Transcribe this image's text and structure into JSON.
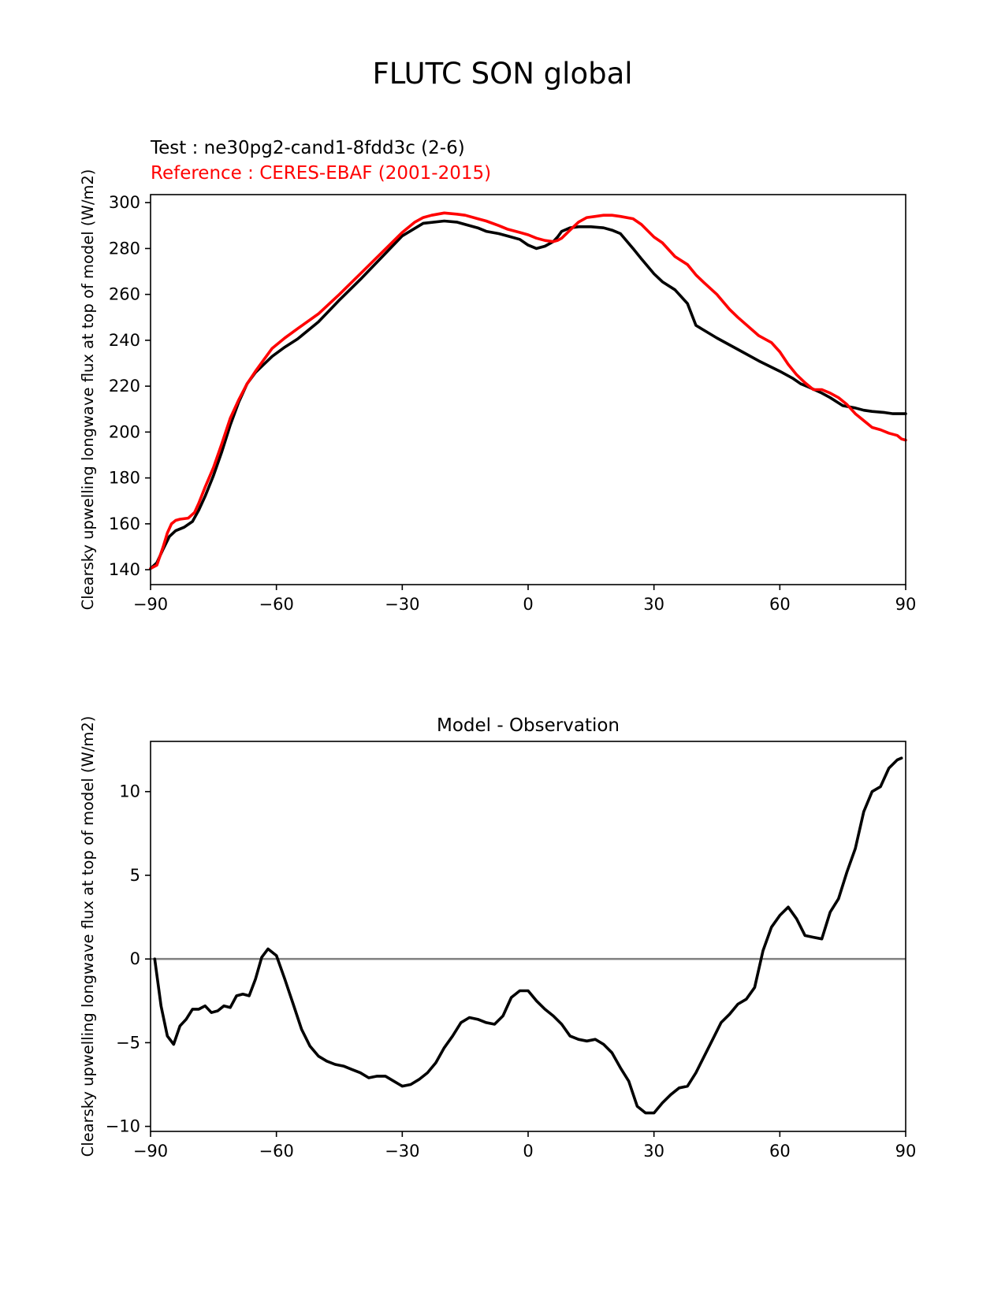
{
  "figure": {
    "title": "FLUTC SON global",
    "test_label": "Test : ne30pg2-cand1-8fdd3c (2-6)",
    "reference_label": "Reference : CERES-EBAF (2001-2015)"
  },
  "colors": {
    "test": "#000000",
    "reference": "#ff0000",
    "zero_line": "#808080"
  },
  "chart_data": [
    {
      "type": "line",
      "title": "",
      "xlabel": "",
      "ylabel": "Clearsky upwelling longwave flux at top of model (W/m2)",
      "xlim": [
        -90,
        90
      ],
      "ylim": [
        133.5,
        303.5
      ],
      "xticks": [
        -90,
        -60,
        -30,
        0,
        30,
        60,
        90
      ],
      "xtick_labels": [
        "−90",
        "−60",
        "−30",
        "0",
        "30",
        "60",
        "90"
      ],
      "yticks": [
        140,
        160,
        180,
        200,
        220,
        240,
        260,
        280,
        300
      ],
      "ytick_labels": [
        "140",
        "160",
        "180",
        "200",
        "220",
        "240",
        "260",
        "280",
        "300"
      ],
      "grid": false,
      "series": [
        {
          "name": "Test : ne30pg2-cand1-8fdd3c (2-6)",
          "color": "#000000",
          "x": [
            -90,
            -88.5,
            -87,
            -85.5,
            -84,
            -82,
            -80,
            -78.5,
            -77,
            -75,
            -73,
            -71,
            -69,
            -67,
            -65,
            -63,
            -61,
            -58,
            -55,
            -50,
            -45,
            -40,
            -35,
            -30,
            -25,
            -20,
            -17,
            -15,
            -12,
            -10,
            -7,
            -5,
            -2,
            0,
            2,
            4,
            6,
            7,
            8,
            10,
            12,
            15,
            18,
            20,
            22,
            25,
            27,
            30,
            32,
            35,
            38,
            40,
            45,
            50,
            55,
            60,
            63,
            65,
            67,
            70,
            72,
            75,
            78,
            80,
            82,
            85,
            87,
            90
          ],
          "y": [
            140.5,
            143,
            149,
            154.5,
            157,
            158.5,
            161,
            166,
            172,
            181,
            191.5,
            203,
            213,
            221,
            226,
            229.5,
            233,
            237,
            240.5,
            248,
            257.5,
            266.5,
            276,
            285.5,
            291,
            292,
            291.5,
            290.5,
            289,
            287.5,
            286.5,
            285.5,
            284,
            281.5,
            280,
            281,
            283,
            285,
            287.5,
            289,
            289.5,
            289.5,
            289,
            288,
            286.5,
            280,
            275.5,
            269,
            265.5,
            262,
            256,
            246.5,
            241,
            236,
            231,
            226.5,
            223.5,
            221,
            219.5,
            217,
            215,
            211.5,
            210.5,
            209.5,
            209,
            208.5,
            208,
            208
          ]
        },
        {
          "name": "Reference : CERES-EBAF (2001-2015)",
          "color": "#ff0000",
          "x": [
            -90,
            -88.5,
            -87,
            -86,
            -85,
            -84,
            -83,
            -81,
            -79.5,
            -78.5,
            -77,
            -75,
            -73,
            -71,
            -69,
            -67,
            -65,
            -63,
            -61,
            -58,
            -55,
            -50,
            -45,
            -40,
            -35,
            -30,
            -27,
            -25,
            -23,
            -20,
            -17,
            -15,
            -12,
            -10,
            -7,
            -5,
            -2,
            0,
            2,
            4,
            6,
            7,
            8,
            10,
            12,
            14,
            16,
            18,
            20,
            22,
            25,
            27,
            30,
            32,
            35,
            38,
            40,
            42,
            45,
            48,
            50,
            55,
            57,
            58,
            60,
            62,
            64,
            66,
            68,
            70,
            72,
            74,
            76,
            78,
            80,
            82,
            84,
            86,
            88,
            89,
            90
          ],
          "y": [
            140.5,
            142,
            150,
            156,
            160,
            161.5,
            162,
            162.5,
            165,
            169,
            176,
            184.5,
            195,
            206,
            214,
            221,
            226.5,
            231.5,
            236.5,
            241,
            245,
            251.5,
            260,
            269,
            278,
            287,
            291.5,
            293.5,
            294.5,
            295.5,
            295,
            294.5,
            293,
            292,
            290,
            288.5,
            287,
            286,
            284.5,
            283.5,
            283,
            283.5,
            284.5,
            288,
            291.5,
            293.5,
            294,
            294.5,
            294.5,
            294,
            293,
            290.5,
            285,
            282.5,
            276.5,
            273,
            268.5,
            265,
            260,
            253.5,
            250,
            242,
            240,
            239,
            235,
            229.5,
            225,
            221.5,
            218.5,
            218.5,
            217,
            215,
            212,
            208,
            205,
            202,
            201,
            199.5,
            198.5,
            197,
            196.5
          ]
        }
      ]
    },
    {
      "type": "line",
      "title": "Model - Observation",
      "xlabel": "",
      "ylabel": "Clearsky upwelling longwave flux at top of model (W/m2)",
      "xlim": [
        -90,
        90
      ],
      "ylim": [
        -10.3,
        13.0
      ],
      "xticks": [
        -90,
        -60,
        -30,
        0,
        30,
        60,
        90
      ],
      "xtick_labels": [
        "−90",
        "−60",
        "−30",
        "0",
        "30",
        "60",
        "90"
      ],
      "yticks": [
        -10,
        -5,
        0,
        5,
        10
      ],
      "ytick_labels": [
        "−10",
        "−5",
        "0",
        "5",
        "10"
      ],
      "grid": false,
      "zero_line": 0,
      "series": [
        {
          "name": "",
          "color": "#000000",
          "x": [
            -89,
            -87.5,
            -86,
            -84.5,
            -83,
            -81.5,
            -80,
            -78.5,
            -77,
            -75.5,
            -74,
            -72.5,
            -71,
            -69.5,
            -68,
            -66.5,
            -65,
            -63.5,
            -62,
            -60,
            -58,
            -56,
            -54,
            -52,
            -50,
            -48,
            -46,
            -44,
            -42,
            -40,
            -38,
            -36,
            -34,
            -32,
            -30,
            -28,
            -26,
            -24,
            -22,
            -20,
            -18,
            -16,
            -14,
            -12,
            -10,
            -8,
            -6,
            -4,
            -2,
            0,
            2,
            4,
            6,
            8,
            10,
            12,
            14,
            16,
            18,
            20,
            22,
            24,
            26,
            28,
            30,
            32,
            34,
            36,
            38,
            40,
            42,
            44,
            46,
            48,
            50,
            52,
            54,
            56,
            58,
            60,
            62,
            64,
            66,
            68,
            70,
            72,
            74,
            76,
            78,
            80,
            82,
            84,
            86,
            88,
            89
          ],
          "y": [
            0,
            -2.8,
            -4.6,
            -5.1,
            -4,
            -3.6,
            -3,
            -3,
            -2.8,
            -3.2,
            -3.1,
            -2.8,
            -2.9,
            -2.2,
            -2.1,
            -2.2,
            -1.2,
            0.1,
            0.6,
            0.2,
            -1.2,
            -2.7,
            -4.2,
            -5.2,
            -5.8,
            -6.1,
            -6.3,
            -6.4,
            -6.6,
            -6.8,
            -7.1,
            -7,
            -7,
            -7.3,
            -7.6,
            -7.5,
            -7.2,
            -6.8,
            -6.2,
            -5.3,
            -4.6,
            -3.8,
            -3.5,
            -3.6,
            -3.8,
            -3.9,
            -3.4,
            -2.3,
            -1.9,
            -1.9,
            -2.5,
            -3,
            -3.4,
            -3.9,
            -4.6,
            -4.8,
            -4.9,
            -4.8,
            -5.1,
            -5.6,
            -6.5,
            -7.3,
            -8.8,
            -9.2,
            -9.2,
            -8.6,
            -8.1,
            -7.7,
            -7.6,
            -6.8,
            -5.8,
            -4.8,
            -3.8,
            -3.3,
            -2.7,
            -2.4,
            -1.7,
            0.5,
            1.9,
            2.6,
            3.1,
            2.4,
            1.4,
            1.3,
            1.2,
            2.8,
            3.6,
            5.2,
            6.6,
            8.8,
            10,
            10.3,
            11.4,
            11.9,
            12
          ]
        }
      ]
    }
  ]
}
